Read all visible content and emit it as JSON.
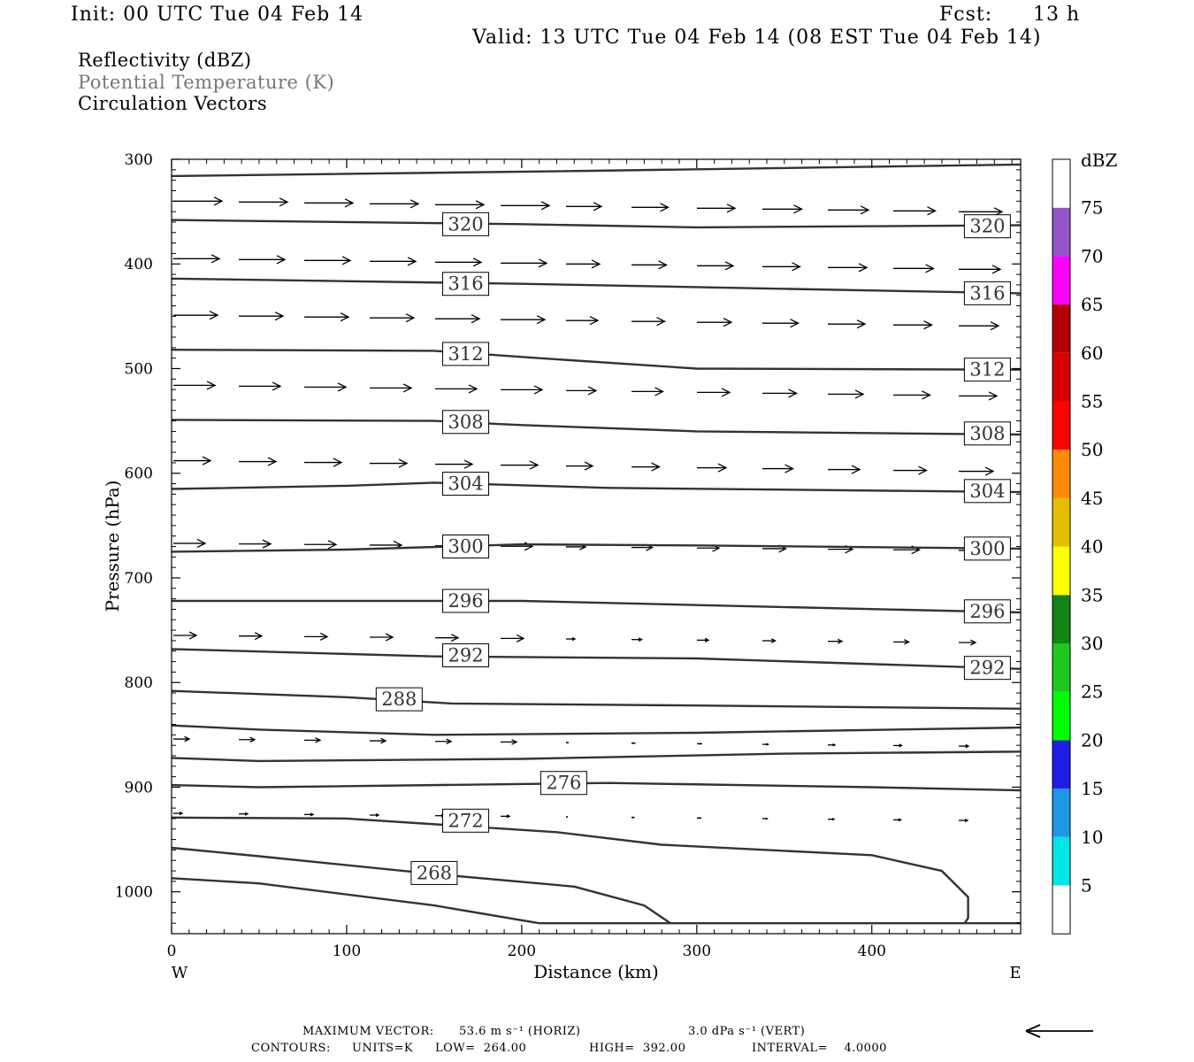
{
  "header": {
    "init": "Init: 00 UTC Tue 04 Feb 14",
    "fcst_label": "Fcst:",
    "fcst_value": "13 h",
    "valid": "Valid: 13 UTC Tue 04 Feb 14 (08 EST Tue 04 Feb 14)"
  },
  "fields": {
    "reflectivity": "Reflectivity (dBZ)",
    "potential_temperature": "Potential Temperature (K)",
    "circulation": "Circulation Vectors"
  },
  "footer": {
    "max_vector_label": "MAXIMUM VECTOR:",
    "max_vector_horiz": "53.6 m s⁻¹ (HORIZ)",
    "max_vector_vert": "3.0 dPa s⁻¹ (VERT)",
    "contours_label": "CONTOURS:",
    "units": "UNITS=K",
    "low": "LOW=  264.00",
    "high": "HIGH=  392.00",
    "interval": "INTERVAL=    4.0000"
  },
  "colors": {
    "line": "#333333",
    "muted_text": "#777777"
  },
  "chart_data": {
    "type": "line",
    "title": "Potential Temperature (K)",
    "xlabel": "Distance (km)",
    "ylabel": "Pressure (hPa)",
    "x_side_labels": [
      "W",
      "E"
    ],
    "xlim": [
      0,
      485
    ],
    "ylim": [
      300,
      1040
    ],
    "y_inverted": true,
    "x_ticks": [
      0,
      100,
      200,
      300,
      400
    ],
    "y_ticks": [
      300,
      400,
      500,
      600,
      700,
      800,
      900,
      1000
    ],
    "contours": [
      {
        "label": "",
        "points": [
          [
            0,
            316
          ],
          [
            240,
            311
          ],
          [
            485,
            305
          ]
        ]
      },
      {
        "label": "320",
        "points": [
          [
            0,
            358
          ],
          [
            200,
            362
          ],
          [
            300,
            365
          ],
          [
            485,
            363
          ]
        ],
        "label_at": [
          [
            168,
            362
          ],
          [
            466,
            364
          ]
        ]
      },
      {
        "label": "316",
        "points": [
          [
            0,
            414
          ],
          [
            200,
            419
          ],
          [
            485,
            428
          ]
        ],
        "label_at": [
          [
            168,
            419
          ],
          [
            466,
            428
          ]
        ]
      },
      {
        "label": "312",
        "points": [
          [
            0,
            482
          ],
          [
            150,
            483
          ],
          [
            210,
            490
          ],
          [
            300,
            500
          ],
          [
            485,
            501
          ]
        ],
        "label_at": [
          [
            168,
            486
          ],
          [
            466,
            501
          ]
        ]
      },
      {
        "label": "308",
        "points": [
          [
            0,
            549
          ],
          [
            150,
            550
          ],
          [
            200,
            554
          ],
          [
            300,
            560
          ],
          [
            485,
            563
          ]
        ],
        "label_at": [
          [
            168,
            551
          ],
          [
            466,
            562
          ]
        ]
      },
      {
        "label": "304",
        "points": [
          [
            0,
            615
          ],
          [
            100,
            612
          ],
          [
            150,
            609
          ],
          [
            250,
            614
          ],
          [
            485,
            618
          ]
        ],
        "label_at": [
          [
            168,
            610
          ],
          [
            466,
            617
          ]
        ]
      },
      {
        "label": "300",
        "points": [
          [
            0,
            675
          ],
          [
            100,
            673
          ],
          [
            200,
            668
          ],
          [
            300,
            669
          ],
          [
            485,
            672
          ]
        ],
        "label_at": [
          [
            168,
            670
          ],
          [
            466,
            672
          ]
        ]
      },
      {
        "label": "296",
        "points": [
          [
            0,
            722
          ],
          [
            200,
            722
          ],
          [
            300,
            726
          ],
          [
            485,
            733
          ]
        ],
        "label_at": [
          [
            168,
            722
          ],
          [
            466,
            732
          ]
        ]
      },
      {
        "label": "292",
        "points": [
          [
            0,
            768
          ],
          [
            150,
            775
          ],
          [
            300,
            777
          ],
          [
            485,
            787
          ]
        ],
        "label_at": [
          [
            168,
            774
          ],
          [
            466,
            786
          ]
        ]
      },
      {
        "label": "288",
        "points": [
          [
            0,
            808
          ],
          [
            100,
            814
          ],
          [
            160,
            820
          ],
          [
            300,
            822
          ],
          [
            485,
            825
          ]
        ],
        "label_at": [
          [
            130,
            816
          ]
        ]
      },
      {
        "label": "",
        "points": [
          [
            0,
            841
          ],
          [
            50,
            845
          ],
          [
            150,
            850
          ],
          [
            300,
            848
          ],
          [
            485,
            843
          ]
        ]
      },
      {
        "label": "",
        "points": [
          [
            0,
            872
          ],
          [
            50,
            875
          ],
          [
            200,
            873
          ],
          [
            350,
            868
          ],
          [
            485,
            866
          ]
        ]
      },
      {
        "label": "276",
        "points": [
          [
            0,
            898
          ],
          [
            50,
            900
          ],
          [
            250,
            896
          ],
          [
            400,
            900
          ],
          [
            485,
            903
          ]
        ],
        "label_at": [
          [
            224,
            896
          ]
        ]
      },
      {
        "label": "272",
        "points": [
          [
            0,
            929
          ],
          [
            100,
            930
          ],
          [
            220,
            943
          ],
          [
            280,
            955
          ],
          [
            400,
            965
          ],
          [
            440,
            980
          ],
          [
            455,
            1005
          ],
          [
            455,
            1025
          ],
          [
            453,
            1030
          ]
        ],
        "label_at": [
          [
            168,
            932
          ]
        ]
      },
      {
        "label": "268",
        "points": [
          [
            0,
            958
          ],
          [
            50,
            966
          ],
          [
            150,
            983
          ],
          [
            230,
            995
          ],
          [
            270,
            1013
          ],
          [
            285,
            1030
          ]
        ],
        "label_at": [
          [
            150,
            982
          ]
        ]
      },
      {
        "label": "",
        "points": [
          [
            0,
            987
          ],
          [
            50,
            992
          ],
          [
            150,
            1013
          ],
          [
            210,
            1030
          ],
          [
            285,
            1030
          ],
          [
            485,
            1030
          ]
        ]
      }
    ],
    "colorbar": {
      "title": "dBZ",
      "ticks": [
        5,
        10,
        15,
        20,
        25,
        30,
        35,
        40,
        45,
        50,
        55,
        60,
        65,
        70,
        75
      ],
      "colors": [
        "#ffffff",
        "#00e5e5",
        "#1e96e6",
        "#1e1ee6",
        "#00ff00",
        "#1ec81e",
        "#148214",
        "#ffff00",
        "#e6be00",
        "#ff8c00",
        "#ff0000",
        "#d70000",
        "#b40000",
        "#ff00ff",
        "#9655c8",
        "#ffffff"
      ]
    }
  }
}
